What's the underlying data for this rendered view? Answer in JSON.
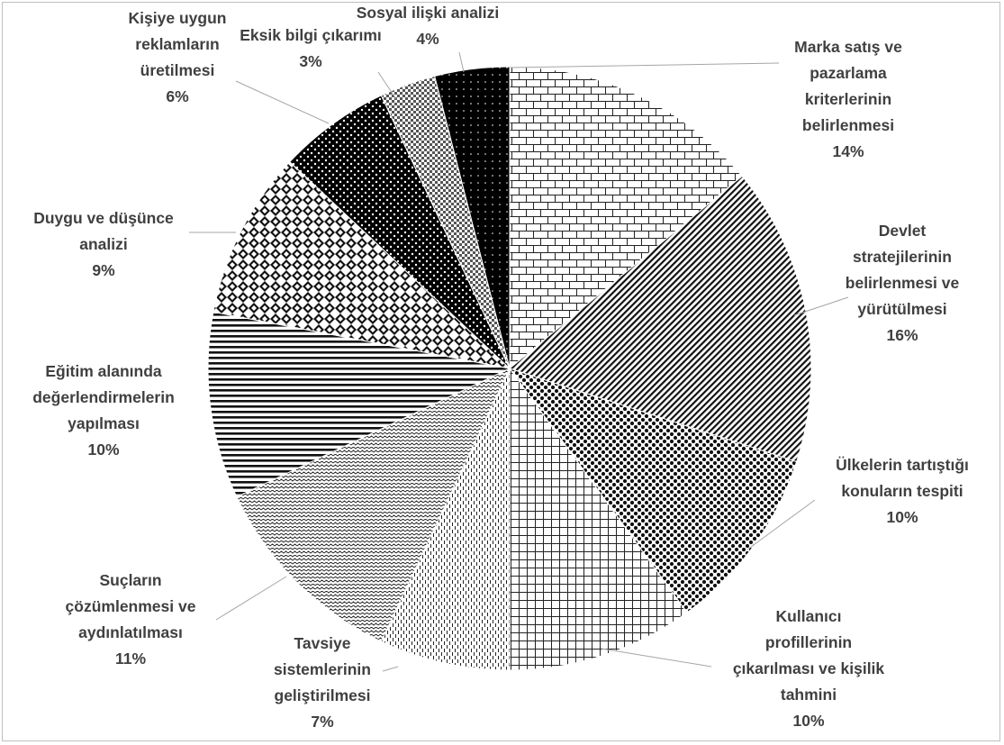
{
  "chart_data": {
    "type": "pie",
    "title": "",
    "legend": "none",
    "slices": [
      {
        "label_lines": [
          "Marka satış ve",
          "pazarlama",
          "kriterlerinin",
          "belirlenmesi"
        ],
        "percent_label": "14%",
        "value": 14,
        "pattern": "brick"
      },
      {
        "label_lines": [
          "Devlet",
          "stratejilerinin",
          "belirlenmesi ve",
          "yürütülmesi"
        ],
        "percent_label": "16%",
        "value": 16,
        "pattern": "diagonal-lines"
      },
      {
        "label_lines": [
          "Ülkelerin tartıştığı",
          "konuların tespiti"
        ],
        "percent_label": "10%",
        "value": 10,
        "pattern": "checker-dots"
      },
      {
        "label_lines": [
          "Kullanıcı",
          "profillerinin",
          "çıkarılması ve kişilik",
          "tahmini"
        ],
        "percent_label": "10%",
        "value": 10,
        "pattern": "grid"
      },
      {
        "label_lines": [
          "Tavsiye",
          "sistemlerinin",
          "geliştirilmesi"
        ],
        "percent_label": "7%",
        "value": 7,
        "pattern": "vertical-dashes"
      },
      {
        "label_lines": [
          "Suçların",
          "çözümlenmesi ve",
          "aydınlatılması"
        ],
        "percent_label": "11%",
        "value": 11,
        "pattern": "zigzag"
      },
      {
        "label_lines": [
          "Eğitim alanında",
          "değerlendirmelerin",
          "yapılması"
        ],
        "percent_label": "10%",
        "value": 10,
        "pattern": "horizontal-lines"
      },
      {
        "label_lines": [
          "Duygu ve düşünce",
          "analizi"
        ],
        "percent_label": "9%",
        "value": 9,
        "pattern": "diamonds"
      },
      {
        "label_lines": [
          "Kişiye uygun",
          "reklamların",
          "üretilmesi"
        ],
        "percent_label": "6%",
        "value": 6,
        "pattern": "black-dots"
      },
      {
        "label_lines": [
          "Eksik bilgi çıkarımı"
        ],
        "percent_label": "3%",
        "value": 3,
        "pattern": "gray-checker"
      },
      {
        "label_lines": [
          "Sosyal ilişki analizi"
        ],
        "percent_label": "4%",
        "value": 4,
        "pattern": "black-sparse-dots"
      }
    ]
  }
}
